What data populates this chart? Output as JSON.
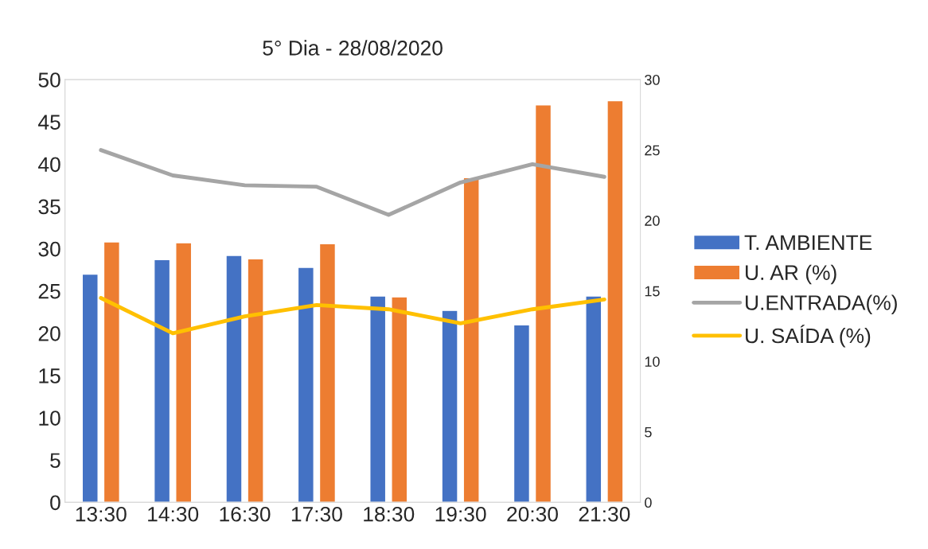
{
  "chart_data": {
    "type": "bar",
    "title": "5° Dia - 28/08/2020",
    "categories": [
      "13:30",
      "14:30",
      "16:30",
      "17:30",
      "18:30",
      "19:30",
      "20:30",
      "21:30"
    ],
    "series": [
      {
        "name": "T. AMBIENTE",
        "color": "#4472c4",
        "values": [
          27.0,
          28.7,
          29.2,
          27.8,
          24.4,
          22.7,
          21.0,
          24.4
        ]
      },
      {
        "name": "U. AR (%)",
        "color": "#ed7d31",
        "values": [
          30.8,
          30.7,
          28.8,
          30.6,
          24.3,
          38.4,
          47.0,
          47.5
        ]
      },
      {
        "name": "U.ENTRADA(%)",
        "type": "line",
        "axis": "y2",
        "color": "#a5a5a5",
        "values": [
          25.0,
          23.2,
          22.5,
          22.4,
          20.4,
          22.7,
          24.0,
          23.1
        ]
      },
      {
        "name": "U. SAÍDA (%)",
        "type": "line",
        "axis": "y2",
        "color": "#ffc000",
        "values": [
          14.5,
          12.0,
          13.2,
          14.0,
          13.7,
          12.7,
          13.7,
          14.4
        ]
      }
    ],
    "ylim": [
      0,
      50
    ],
    "yticks": [
      0,
      5,
      10,
      15,
      20,
      25,
      30,
      35,
      40,
      45,
      50
    ],
    "y2lim": [
      0,
      30
    ],
    "y2ticks": [
      0,
      5,
      10,
      15,
      20,
      25,
      30
    ],
    "grid": false,
    "legend": "right"
  }
}
